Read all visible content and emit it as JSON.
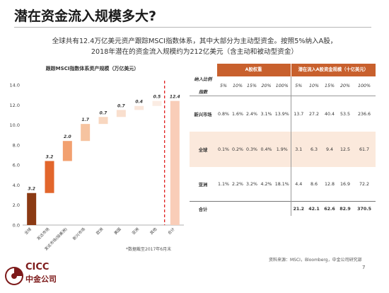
{
  "header": {
    "title": "潜在资金流入规模多大?",
    "subtitle_line1": "全球共有12.4万亿美元资产跟踪MSCI指数体系，其中大部分为主动型资金。按照5%纳入A股，",
    "subtitle_line2": "2018年潜在的资金流入规模约为212亿美元（含主动和被动型资金）"
  },
  "chart_data": {
    "type": "bar",
    "subtype": "waterfall",
    "title": "跟踪MSCI指数体系资产规模（万亿美元）",
    "categories": [
      "全球",
      "发达市场",
      "发达市场(除美洲)",
      "新兴市场",
      "欧洲",
      "美国",
      "亚洲",
      "其他",
      "合计"
    ],
    "values": [
      3.2,
      3.2,
      2.0,
      1.7,
      0.7,
      0.7,
      0.4,
      0.5,
      12.4
    ],
    "value_labels": [
      "3.2",
      "3.2",
      "2.0",
      "1.7",
      "0.7",
      "0.7",
      "0.4",
      "0.5",
      "12.4"
    ],
    "ylim": [
      0,
      14
    ],
    "yticks": [
      "0.0",
      "2.0",
      "4.0",
      "6.0",
      "8.0",
      "10.0",
      "12.0",
      "14.0"
    ],
    "colors": [
      "#8b3a13",
      "#e2662c",
      "#f2a06f",
      "#f6c3a0",
      "#f8d7c0",
      "#f9dfce",
      "#fae6da",
      "#fbece3",
      "#f9cdb8"
    ],
    "separator_color": "#e02020",
    "note": "*数据截至2017年6月末"
  },
  "table": {
    "group_header_a": "A股权重",
    "group_header_b": "潜在流入A股资金规模（十亿美元）",
    "ratio_label": "纳入比例",
    "index_label": "指数",
    "columns": [
      "5%",
      "10%",
      "15%",
      "20%",
      "100%",
      "5%",
      "10%",
      "15%",
      "20%",
      "100%"
    ],
    "rows": [
      {
        "label": "新兴市场",
        "values": [
          "0.8%",
          "1.6%",
          "2.4%",
          "3.1%",
          "13.9%",
          "13.7",
          "27.2",
          "40.4",
          "53.5",
          "236.6"
        ]
      },
      {
        "label": "全球",
        "values": [
          "0.1%",
          "0.2%",
          "0.3%",
          "0.4%",
          "1.9%",
          "3.1",
          "6.3",
          "9.4",
          "12.5",
          "61.7"
        ]
      },
      {
        "label": "亚洲",
        "values": [
          "1.1%",
          "2.2%",
          "3.2%",
          "4.2%",
          "18.1%",
          "4.4",
          "8.6",
          "12.8",
          "16.9",
          "72.2"
        ]
      }
    ],
    "total": {
      "label": "合计",
      "values": [
        "",
        "",
        "",
        "",
        "",
        "21.2",
        "42.1",
        "62.6",
        "82.9",
        "370.5"
      ]
    }
  },
  "footer": {
    "source": "资料来源：MSCI，Bloomberg，中金公司研究部",
    "page_number": "7",
    "logo_en": "CICC",
    "logo_cn": "中金公司",
    "brand_color": "#7d1a1a"
  }
}
